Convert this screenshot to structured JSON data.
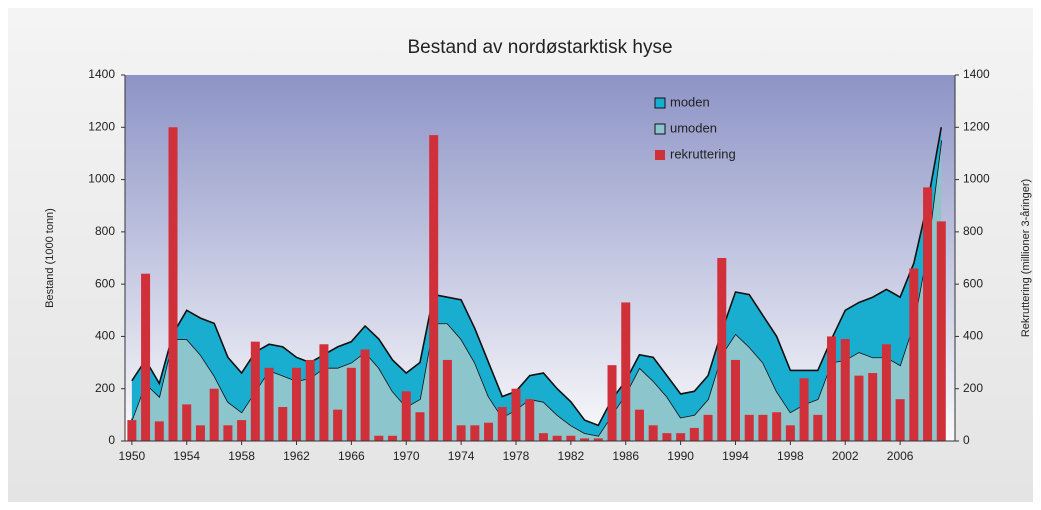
{
  "chart_data": {
    "type": "stacked-area-bar",
    "title": "Bestand av nordøstarktisk hyse",
    "ylabel": "Bestand (1000 tonn)",
    "y2label": "Rekruttering (millioner 3-åringer)",
    "x": [
      1950,
      1951,
      1952,
      1953,
      1954,
      1955,
      1956,
      1957,
      1958,
      1959,
      1960,
      1961,
      1962,
      1963,
      1964,
      1965,
      1966,
      1967,
      1968,
      1969,
      1970,
      1971,
      1972,
      1973,
      1974,
      1975,
      1976,
      1977,
      1978,
      1979,
      1980,
      1981,
      1982,
      1983,
      1984,
      1985,
      1986,
      1987,
      1988,
      1989,
      1990,
      1991,
      1992,
      1993,
      1994,
      1995,
      1996,
      1997,
      1998,
      1999,
      2000,
      2001,
      2002,
      2003,
      2004,
      2005,
      2006,
      2007,
      2008,
      2009
    ],
    "xlim": [
      1949.5,
      2010
    ],
    "xticks": [
      1950,
      1954,
      1958,
      1962,
      1966,
      1970,
      1974,
      1978,
      1982,
      1986,
      1990,
      1994,
      1998,
      2002,
      2006
    ],
    "ylim": [
      0,
      1400
    ],
    "yticks": [
      0,
      200,
      400,
      600,
      800,
      1000,
      1200,
      1400
    ],
    "y2lim": [
      0,
      1400
    ],
    "y2ticks": [
      0,
      200,
      400,
      600,
      800,
      1000,
      1200,
      1400
    ],
    "legend": "upper right",
    "series": [
      {
        "name": "moden",
        "color": "#19aed0",
        "kind": "area",
        "values": [
          150,
          90,
          50,
          20,
          110,
          140,
          200,
          170,
          150,
          150,
          100,
          110,
          90,
          60,
          50,
          80,
          80,
          100,
          110,
          120,
          130,
          140,
          110,
          100,
          150,
          130,
          130,
          80,
          70,
          90,
          110,
          100,
          90,
          50,
          40,
          60,
          50,
          50,
          90,
          80,
          90,
          90,
          90,
          90,
          160,
          200,
          180,
          210,
          160,
          130,
          110,
          90,
          190,
          190,
          230,
          260,
          260,
          230,
          180,
          50
        ]
      },
      {
        "name": "umoden",
        "color": "#8cc6cc",
        "kind": "area",
        "values": [
          80,
          220,
          170,
          390,
          390,
          330,
          250,
          150,
          110,
          190,
          270,
          250,
          230,
          240,
          280,
          280,
          300,
          340,
          280,
          190,
          130,
          160,
          450,
          450,
          390,
          300,
          170,
          90,
          120,
          160,
          150,
          100,
          60,
          30,
          20,
          100,
          180,
          280,
          230,
          170,
          90,
          100,
          160,
          330,
          410,
          360,
          300,
          190,
          110,
          140,
          160,
          300,
          310,
          340,
          320,
          320,
          290,
          450,
          730,
          1150
        ]
      },
      {
        "name": "rekruttering",
        "color": "#d0303a",
        "kind": "bar",
        "axis": "y2",
        "values": [
          80,
          640,
          75,
          1200,
          140,
          60,
          200,
          60,
          80,
          380,
          280,
          130,
          280,
          310,
          370,
          120,
          280,
          350,
          20,
          20,
          190,
          110,
          1170,
          310,
          60,
          60,
          70,
          130,
          200,
          160,
          30,
          20,
          20,
          10,
          10,
          290,
          530,
          120,
          60,
          30,
          30,
          50,
          100,
          700,
          310,
          100,
          100,
          110,
          60,
          240,
          100,
          400,
          390,
          250,
          260,
          370,
          160,
          660,
          970,
          840
        ]
      }
    ]
  }
}
